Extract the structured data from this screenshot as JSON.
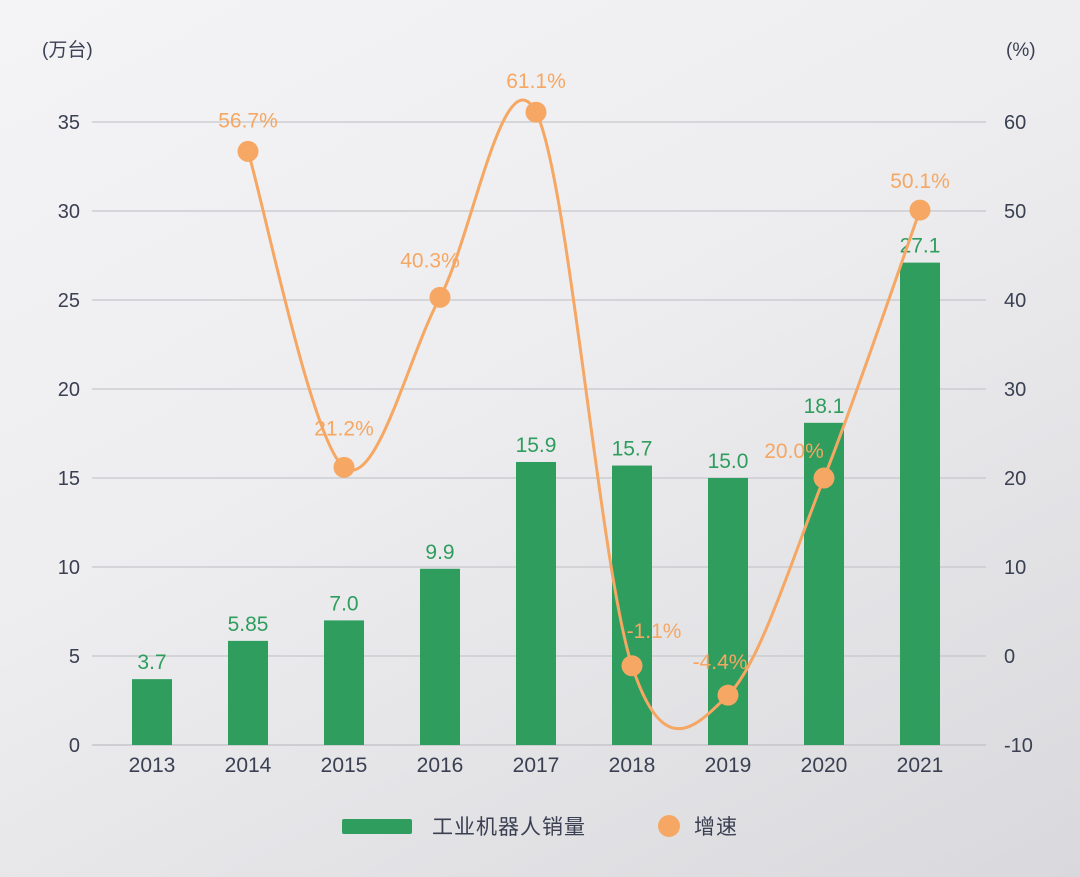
{
  "chart_data": {
    "type": "combo-bar-line",
    "title": "",
    "categories": [
      "2013",
      "2014",
      "2015",
      "2016",
      "2017",
      "2018",
      "2019",
      "2020",
      "2021"
    ],
    "series": [
      {
        "name": "工业机器人销量",
        "type": "bar",
        "axis": "left",
        "color": "#2e9d5e",
        "values": [
          3.7,
          5.85,
          7.0,
          9.9,
          15.9,
          15.7,
          15.0,
          18.1,
          27.1
        ],
        "labels": [
          "3.7",
          "5.85",
          "7.0",
          "9.9",
          "15.9",
          "15.7",
          "15.0",
          "18.1",
          "27.1"
        ]
      },
      {
        "name": "增速",
        "type": "line",
        "axis": "right",
        "color": "#f5a763",
        "values": [
          null,
          56.7,
          21.2,
          40.3,
          61.1,
          -1.1,
          -4.4,
          20.0,
          50.1
        ],
        "labels": [
          null,
          "56.7%",
          "21.2%",
          "40.3%",
          "61.1%",
          "-1.1%",
          "-4.4%",
          "20.0%",
          "50.1%"
        ]
      }
    ],
    "left_axis": {
      "unit": "(万台)",
      "min": 0,
      "max": 35,
      "tick_step": 5,
      "ticks": [
        "0",
        "5",
        "10",
        "15",
        "20",
        "25",
        "30",
        "35"
      ]
    },
    "right_axis": {
      "unit": "(%)",
      "min": -10,
      "max": 60,
      "tick_step": 10,
      "ticks": [
        "-10",
        "0",
        "10",
        "20",
        "30",
        "40",
        "50",
        "60"
      ]
    },
    "grid": true,
    "legend_position": "bottom"
  },
  "colors": {
    "bar_green": "#2e9d5e",
    "line_orange": "#f5a763",
    "axis_text": "#3a4052",
    "gridline": "#c6c7cb",
    "bottom_axis_line": "#bfc0c4",
    "bg_top": "#f4f4f6",
    "bg_bottom": "#d9d9dd"
  }
}
